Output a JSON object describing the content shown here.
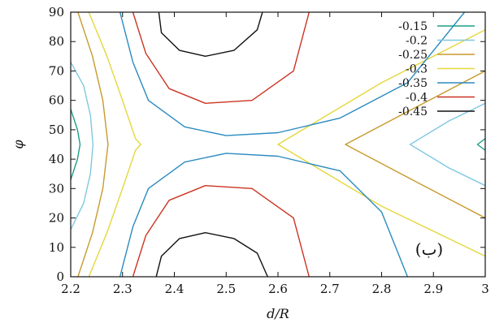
{
  "chart_data": {
    "type": "contour",
    "xlabel": "d/R",
    "ylabel": "φ",
    "xlim": [
      2.2,
      3.0
    ],
    "ylim": [
      0,
      90
    ],
    "xticks": [
      "2.2",
      "2.3",
      "2.4",
      "2.5",
      "2.6",
      "2.7",
      "2.8",
      "2.9",
      "3"
    ],
    "yticks": [
      "0",
      "10",
      "20",
      "30",
      "40",
      "50",
      "60",
      "70",
      "80",
      "90"
    ],
    "panel_label": "(ب)",
    "legend_position": "top-right",
    "grid": false,
    "levels": [
      {
        "name": "-0.15",
        "color": "#1b9e8a",
        "paths": [
          [
            [
              2.2,
              57
            ],
            [
              2.213,
              50
            ],
            [
              2.218,
              45
            ],
            [
              2.213,
              40
            ],
            [
              2.2,
              33
            ]
          ],
          [
            [
              3.0,
              47
            ],
            [
              2.985,
              45
            ],
            [
              3.0,
              43
            ]
          ]
        ]
      },
      {
        "name": "-0.2",
        "color": "#7fc8e0",
        "paths": [
          [
            [
              2.2,
              73
            ],
            [
              2.225,
              65
            ],
            [
              2.238,
              55
            ],
            [
              2.243,
              45
            ],
            [
              2.238,
              35
            ],
            [
              2.225,
              25
            ],
            [
              2.2,
              16
            ]
          ],
          [
            [
              3.0,
              59
            ],
            [
              2.93,
              53
            ],
            [
              2.855,
              45
            ],
            [
              2.93,
              37
            ],
            [
              3.0,
              31
            ]
          ]
        ]
      },
      {
        "name": "-0.25",
        "color": "#c89a2e",
        "paths": [
          [
            [
              2.214,
              90
            ],
            [
              2.242,
              75
            ],
            [
              2.262,
              60
            ],
            [
              2.272,
              45
            ],
            [
              2.262,
              30
            ],
            [
              2.242,
              15
            ],
            [
              2.214,
              0
            ]
          ],
          [
            [
              3.0,
              70
            ],
            [
              2.87,
              58
            ],
            [
              2.73,
              45
            ],
            [
              2.87,
              32
            ],
            [
              3.0,
              20
            ]
          ]
        ]
      },
      {
        "name": "-0.3",
        "color": "#e5d73b",
        "paths": [
          [
            [
              2.235,
              90
            ],
            [
              2.27,
              75
            ],
            [
              2.3,
              60
            ],
            [
              2.325,
              47
            ],
            [
              2.335,
              45
            ],
            [
              2.325,
              43
            ],
            [
              2.3,
              30
            ],
            [
              2.27,
              15
            ],
            [
              2.235,
              0
            ]
          ],
          [
            [
              3.0,
              84
            ],
            [
              2.8,
              66
            ],
            [
              2.6,
              45
            ],
            [
              2.8,
              24
            ],
            [
              3.0,
              7
            ]
          ]
        ]
      },
      {
        "name": "-0.35",
        "color": "#2b8bbf",
        "paths": [
          [
            [
              2.295,
              90
            ],
            [
              2.32,
              73
            ],
            [
              2.35,
              60
            ],
            [
              2.42,
              51
            ],
            [
              2.5,
              48
            ],
            [
              2.6,
              49
            ],
            [
              2.72,
              54
            ],
            [
              2.85,
              66
            ],
            [
              2.96,
              90
            ]
          ],
          [
            [
              2.295,
              0
            ],
            [
              2.32,
              17
            ],
            [
              2.35,
              30
            ],
            [
              2.42,
              39
            ],
            [
              2.5,
              42
            ],
            [
              2.6,
              41
            ],
            [
              2.72,
              36
            ],
            [
              2.8,
              22
            ],
            [
              2.85,
              0
            ]
          ]
        ]
      },
      {
        "name": "-0.4",
        "color": "#cc3322",
        "paths": [
          [
            [
              2.32,
              90
            ],
            [
              2.345,
              76
            ],
            [
              2.39,
              64
            ],
            [
              2.46,
              59
            ],
            [
              2.55,
              60
            ],
            [
              2.63,
              70
            ],
            [
              2.66,
              90
            ]
          ],
          [
            [
              2.32,
              0
            ],
            [
              2.345,
              14
            ],
            [
              2.39,
              26
            ],
            [
              2.46,
              31
            ],
            [
              2.55,
              30
            ],
            [
              2.63,
              20
            ],
            [
              2.66,
              0
            ]
          ]
        ]
      },
      {
        "name": "-0.45",
        "color": "#111111",
        "paths": [
          [
            [
              2.37,
              90
            ],
            [
              2.375,
              83
            ],
            [
              2.41,
              77
            ],
            [
              2.46,
              75
            ],
            [
              2.515,
              77
            ],
            [
              2.56,
              84
            ],
            [
              2.57,
              90
            ]
          ],
          [
            [
              2.365,
              0
            ],
            [
              2.375,
              7
            ],
            [
              2.41,
              13
            ],
            [
              2.46,
              15
            ],
            [
              2.515,
              13
            ],
            [
              2.56,
              8
            ],
            [
              2.58,
              0
            ]
          ]
        ]
      }
    ]
  }
}
